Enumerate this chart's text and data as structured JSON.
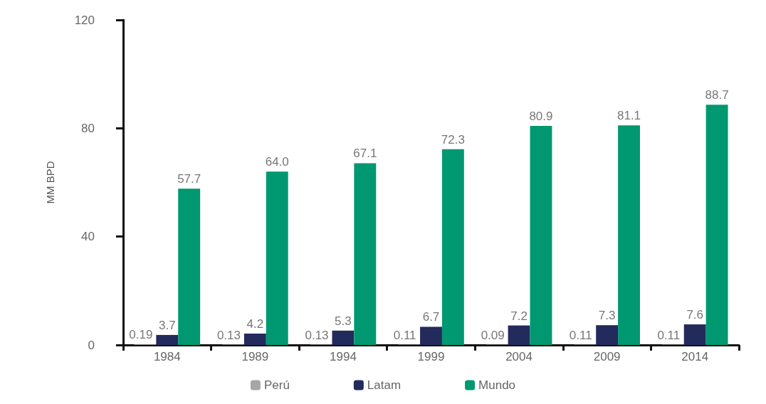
{
  "chart_data": {
    "type": "bar",
    "ylabel": "MM BPD",
    "categories": [
      "1984",
      "1989",
      "1994",
      "1999",
      "2004",
      "2009",
      "2014"
    ],
    "series": [
      {
        "name": "Perú",
        "color": "#a6a6a6",
        "values": [
          0.19,
          0.13,
          0.13,
          0.11,
          0.09,
          0.11,
          0.11
        ],
        "value_labels": [
          "0.19",
          "0.13",
          "0.13",
          "0.11",
          "0.09",
          "0.11",
          "0.11"
        ]
      },
      {
        "name": "Latam",
        "color": "#232a5c",
        "values": [
          3.7,
          4.2,
          5.3,
          6.7,
          7.2,
          7.3,
          7.6
        ],
        "value_labels": [
          "3.7",
          "4.2",
          "5.3",
          "6.7",
          "7.2",
          "7.3",
          "7.6"
        ]
      },
      {
        "name": "Mundo",
        "color": "#009870",
        "values": [
          57.7,
          64.0,
          67.1,
          72.3,
          80.9,
          81.1,
          88.7
        ],
        "value_labels": [
          "57.7",
          "64.0",
          "67.1",
          "72.3",
          "80.9",
          "81.1",
          "88.7"
        ]
      }
    ],
    "ylim": [
      0,
      120
    ],
    "yticks": [
      0,
      40,
      80,
      120
    ],
    "grid": false,
    "legend": "bottom"
  }
}
